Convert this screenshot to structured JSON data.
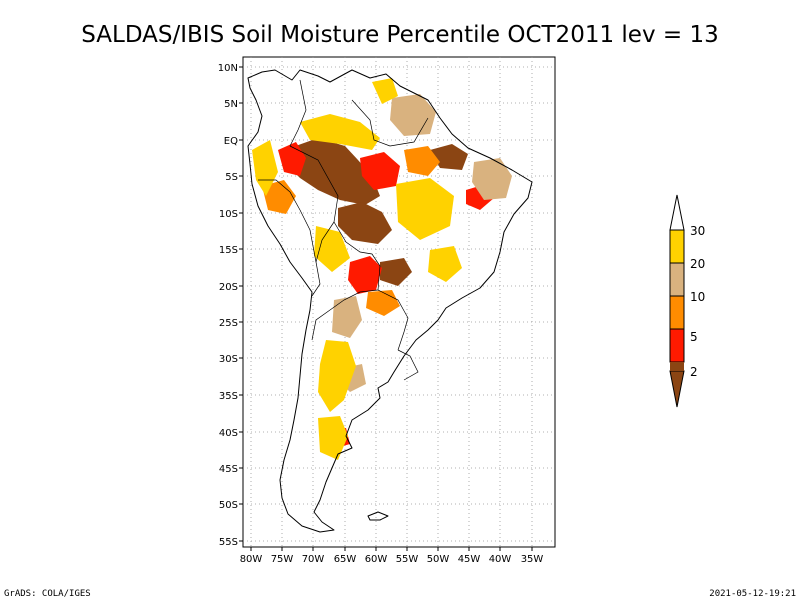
{
  "title": "SALDAS/IBIS Soil Moisture Percentile OCT2011 lev = 13",
  "lat_labels": [
    "10N",
    "5N",
    "EQ",
    "5S",
    "10S",
    "15S",
    "20S",
    "25S",
    "30S",
    "35S",
    "40S",
    "45S",
    "50S",
    "55S"
  ],
  "lon_labels": [
    "80W",
    "75W",
    "70W",
    "65W",
    "60W",
    "55W",
    "50W",
    "45W",
    "40W",
    "35W"
  ],
  "legend": {
    "labels": [
      "30",
      "20",
      "10",
      "5",
      "2"
    ],
    "colors": [
      "#ffffff",
      "#ffd200",
      "#d9b27f",
      "#ff8c00",
      "#ff1a00",
      "#8b4513"
    ]
  },
  "footer": {
    "left": "GrADS: COLA/IGES",
    "right": "2021-05-12-19:21"
  }
}
